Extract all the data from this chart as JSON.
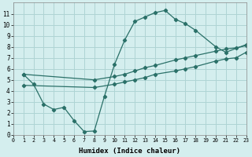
{
  "xlabel": "Humidex (Indice chaleur)",
  "bg_color": "#d4eeee",
  "grid_color": "#aed4d4",
  "line_color": "#2a7068",
  "line1_x": [
    1,
    2,
    3,
    4,
    5,
    6,
    7,
    8,
    9,
    10,
    11,
    12,
    13,
    14,
    15,
    16,
    17,
    18,
    20,
    21,
    23
  ],
  "line1_y": [
    5.5,
    4.6,
    2.8,
    2.3,
    2.5,
    1.3,
    0.3,
    0.35,
    3.5,
    6.4,
    8.6,
    10.3,
    10.7,
    11.1,
    11.3,
    10.5,
    10.1,
    9.5,
    8.0,
    7.5,
    8.2
  ],
  "line2_x": [
    1,
    8,
    10,
    11,
    12,
    13,
    14,
    16,
    17,
    18,
    20,
    21,
    22,
    23
  ],
  "line2_y": [
    5.5,
    5.0,
    5.3,
    5.5,
    5.8,
    6.1,
    6.3,
    6.8,
    7.0,
    7.2,
    7.6,
    7.8,
    7.9,
    8.1
  ],
  "line3_x": [
    1,
    8,
    10,
    11,
    12,
    13,
    14,
    16,
    17,
    18,
    20,
    21,
    22,
    23
  ],
  "line3_y": [
    4.5,
    4.3,
    4.6,
    4.8,
    5.0,
    5.2,
    5.5,
    5.8,
    6.0,
    6.2,
    6.7,
    6.9,
    7.0,
    7.5
  ],
  "xlim": [
    0,
    23
  ],
  "ylim": [
    0,
    12
  ],
  "xticks": [
    0,
    1,
    2,
    3,
    4,
    5,
    6,
    7,
    8,
    9,
    10,
    11,
    12,
    13,
    14,
    15,
    16,
    17,
    18,
    19,
    20,
    21,
    22,
    23
  ],
  "yticks": [
    0,
    1,
    2,
    3,
    4,
    5,
    6,
    7,
    8,
    9,
    10,
    11
  ]
}
